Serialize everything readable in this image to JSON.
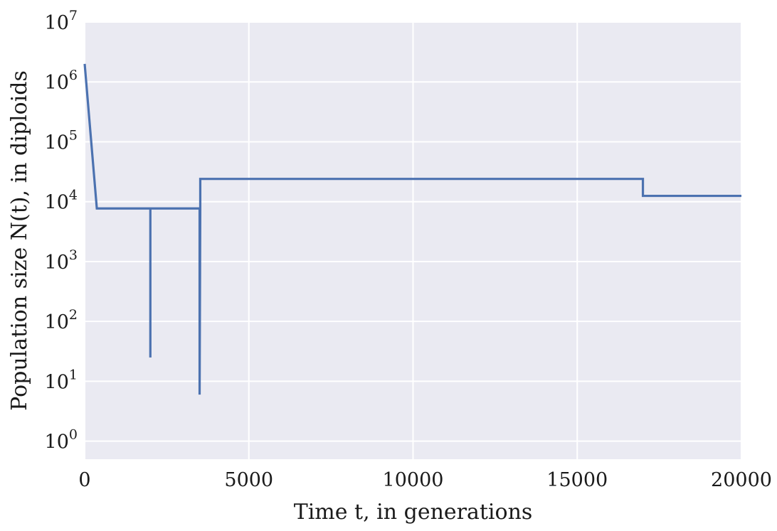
{
  "chart_data": {
    "type": "line",
    "title": "",
    "xlabel": "Time t, in generations",
    "ylabel": "Population size N(t), in diploids",
    "x_scale": "linear",
    "y_scale": "log",
    "xlim": [
      0,
      20000
    ],
    "ylim": [
      0.5,
      10000000
    ],
    "grid": true,
    "legend": "none",
    "colors": {
      "plot_background": "#eaeaf2",
      "grid": "#ffffff",
      "line": "#4c72b0"
    },
    "x_ticks": [
      {
        "value": 0,
        "label": "0"
      },
      {
        "value": 5000,
        "label": "5000"
      },
      {
        "value": 10000,
        "label": "10000"
      },
      {
        "value": 15000,
        "label": "15000"
      },
      {
        "value": 20000,
        "label": "20000"
      }
    ],
    "y_ticks": [
      {
        "value": 1,
        "base": "10",
        "exp": "0"
      },
      {
        "value": 10,
        "base": "10",
        "exp": "1"
      },
      {
        "value": 100,
        "base": "10",
        "exp": "2"
      },
      {
        "value": 1000,
        "base": "10",
        "exp": "3"
      },
      {
        "value": 10000,
        "base": "10",
        "exp": "4"
      },
      {
        "value": 100000,
        "base": "10",
        "exp": "5"
      },
      {
        "value": 1000000,
        "base": "10",
        "exp": "6"
      },
      {
        "value": 10000000,
        "base": "10",
        "exp": "7"
      }
    ],
    "series": [
      {
        "x": [
          0,
          370,
          2000,
          2000,
          2000,
          3500,
          3500,
          3520,
          3520,
          17000,
          17000,
          20000
        ],
        "y": [
          2000000,
          7700,
          7700,
          25,
          7700,
          7700,
          6,
          7700,
          24000,
          24000,
          12500,
          12500
        ]
      }
    ]
  }
}
